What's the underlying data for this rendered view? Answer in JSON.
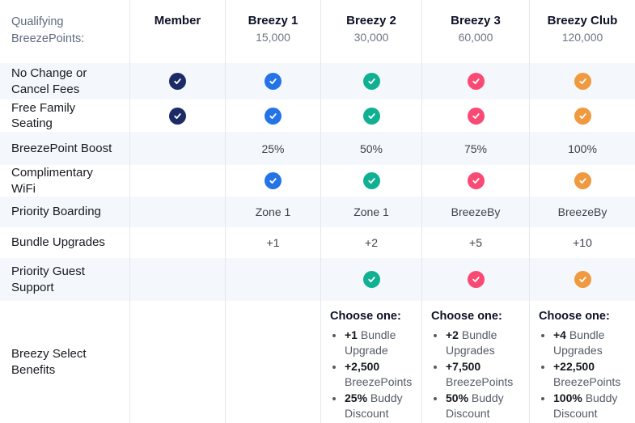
{
  "palette": {
    "stripe_bg": "#f4f7fb",
    "divider": "#e4e7ec",
    "check_navy": "#1c2b66",
    "check_blue": "#2474e8",
    "check_teal": "#10b192",
    "check_pink": "#f94a74",
    "check_orange": "#f0993f"
  },
  "header": {
    "row_label": "Qualifying BreezePoints:",
    "columns": [
      {
        "id": "member",
        "name": "Member",
        "points": ""
      },
      {
        "id": "breezy-1",
        "name": "Breezy 1",
        "points": "15,000"
      },
      {
        "id": "breezy-2",
        "name": "Breezy 2",
        "points": "30,000"
      },
      {
        "id": "breezy-3",
        "name": "Breezy 3",
        "points": "60,000"
      },
      {
        "id": "breezy-club",
        "name": "Breezy Club",
        "points": "120,000"
      }
    ]
  },
  "rows": [
    {
      "id": "no-change-or-cancel-fees",
      "label": "No Change or Cancel Fees",
      "cells": [
        {
          "type": "check",
          "color": "check_navy"
        },
        {
          "type": "check",
          "color": "check_blue"
        },
        {
          "type": "check",
          "color": "check_teal"
        },
        {
          "type": "check",
          "color": "check_pink"
        },
        {
          "type": "check",
          "color": "check_orange"
        }
      ]
    },
    {
      "id": "free-family-seating",
      "label": "Free Family Seating",
      "cells": [
        {
          "type": "check",
          "color": "check_navy"
        },
        {
          "type": "check",
          "color": "check_blue"
        },
        {
          "type": "check",
          "color": "check_teal"
        },
        {
          "type": "check",
          "color": "check_pink"
        },
        {
          "type": "check",
          "color": "check_orange"
        }
      ]
    },
    {
      "id": "breezepoint-boost",
      "label": "BreezePoint Boost",
      "cells": [
        {
          "type": "empty"
        },
        {
          "type": "text",
          "value": "25%"
        },
        {
          "type": "text",
          "value": "50%"
        },
        {
          "type": "text",
          "value": "75%"
        },
        {
          "type": "text",
          "value": "100%"
        }
      ]
    },
    {
      "id": "complimentary-wifi",
      "label": "Complimentary WiFi",
      "cells": [
        {
          "type": "empty"
        },
        {
          "type": "check",
          "color": "check_blue"
        },
        {
          "type": "check",
          "color": "check_teal"
        },
        {
          "type": "check",
          "color": "check_pink"
        },
        {
          "type": "check",
          "color": "check_orange"
        }
      ]
    },
    {
      "id": "priority-boarding",
      "label": "Priority Boarding",
      "cells": [
        {
          "type": "empty"
        },
        {
          "type": "text",
          "value": "Zone 1"
        },
        {
          "type": "text",
          "value": "Zone 1"
        },
        {
          "type": "text",
          "value": "BreezeBy"
        },
        {
          "type": "text",
          "value": "BreezeBy"
        }
      ]
    },
    {
      "id": "bundle-upgrades",
      "label": "Bundle Upgrades",
      "cells": [
        {
          "type": "empty"
        },
        {
          "type": "text",
          "value": "+1"
        },
        {
          "type": "text",
          "value": "+2"
        },
        {
          "type": "text",
          "value": "+5"
        },
        {
          "type": "text",
          "value": "+10"
        }
      ]
    },
    {
      "id": "priority-guest-support",
      "label": "Priority Guest Support",
      "cells": [
        {
          "type": "empty"
        },
        {
          "type": "empty"
        },
        {
          "type": "check",
          "color": "check_teal"
        },
        {
          "type": "check",
          "color": "check_pink"
        },
        {
          "type": "check",
          "color": "check_orange"
        }
      ]
    },
    {
      "id": "breezy-select-benefits",
      "label": "Breezy Select Benefits",
      "cells": [
        {
          "type": "empty"
        },
        {
          "type": "empty"
        },
        {
          "type": "list",
          "heading": "Choose one:",
          "items": [
            {
              "bold": "+1",
              "rest": " Bundle Upgrade"
            },
            {
              "bold": "+2,500",
              "rest": " BreezePoints"
            },
            {
              "bold": "25%",
              "rest": " Buddy Discount"
            }
          ]
        },
        {
          "type": "list",
          "heading": "Choose one:",
          "items": [
            {
              "bold": "+2",
              "rest": " Bundle Upgrades"
            },
            {
              "bold": "+7,500",
              "rest": " BreezePoints"
            },
            {
              "bold": "50%",
              "rest": " Buddy Discount"
            }
          ]
        },
        {
          "type": "list",
          "heading": "Choose one:",
          "items": [
            {
              "bold": "+4",
              "rest": " Bundle Upgrades"
            },
            {
              "bold": "+22,500",
              "rest": " BreezePoints"
            },
            {
              "bold": "100%",
              "rest": " Buddy Discount"
            }
          ]
        }
      ]
    }
  ]
}
